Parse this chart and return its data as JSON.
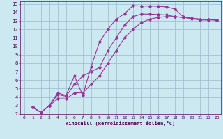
{
  "xlabel": "Windchill (Refroidissement éolien,°C)",
  "bg_color": "#cce8f0",
  "grid_color": "#99bbcc",
  "line_color": "#993399",
  "xlim": [
    -0.5,
    23.5
  ],
  "ylim": [
    2,
    15.3
  ],
  "xticks": [
    0,
    1,
    2,
    3,
    4,
    5,
    6,
    7,
    8,
    9,
    10,
    11,
    12,
    13,
    14,
    15,
    16,
    17,
    18,
    19,
    20,
    21,
    22,
    23
  ],
  "yticks": [
    2,
    3,
    4,
    5,
    6,
    7,
    8,
    9,
    10,
    11,
    12,
    13,
    14,
    15
  ],
  "line1_x": [
    1,
    2,
    3,
    4,
    5,
    6,
    7,
    8,
    9,
    10,
    11,
    12,
    13,
    14,
    15,
    16,
    17,
    18,
    19,
    20,
    21,
    22,
    23
  ],
  "line1_y": [
    2.8,
    2.2,
    3.0,
    4.5,
    4.2,
    6.5,
    4.2,
    7.6,
    10.5,
    12.0,
    13.2,
    13.85,
    14.8,
    14.75,
    14.75,
    14.72,
    14.65,
    14.4,
    13.5,
    13.25,
    13.1,
    13.1,
    13.1
  ],
  "line2_x": [
    1,
    2,
    3,
    4,
    5,
    6,
    7,
    8,
    9,
    10,
    11,
    12,
    13,
    14,
    15,
    16,
    17,
    18,
    19,
    20,
    21,
    22,
    23
  ],
  "line2_y": [
    2.8,
    2.2,
    3.0,
    4.3,
    4.1,
    5.5,
    6.5,
    7.0,
    7.5,
    9.5,
    11.0,
    12.5,
    13.5,
    13.8,
    13.8,
    13.75,
    13.7,
    13.5,
    13.4,
    13.3,
    13.2,
    13.15,
    13.1
  ],
  "line3_x": [
    1,
    2,
    3,
    4,
    5,
    6,
    7,
    8,
    9,
    10,
    11,
    12,
    13,
    14,
    15,
    16,
    17,
    18,
    19,
    20,
    21,
    22,
    23
  ],
  "line3_y": [
    2.8,
    2.2,
    3.0,
    3.8,
    3.8,
    4.5,
    4.5,
    5.5,
    6.5,
    8.0,
    9.5,
    11.0,
    12.0,
    12.8,
    13.2,
    13.4,
    13.5,
    13.5,
    13.4,
    13.3,
    13.2,
    13.15,
    13.1
  ]
}
